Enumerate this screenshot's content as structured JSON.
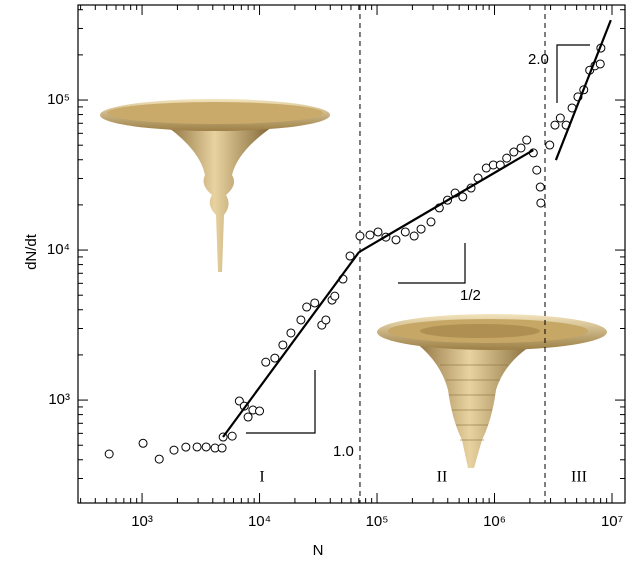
{
  "chart_data": {
    "type": "scatter",
    "x_label": "N",
    "y_label": "dN/dt",
    "log_x": true,
    "log_y": true,
    "xlim": [
      285,
      12900000
    ],
    "ylim": [
      206,
      430000
    ],
    "xticks": [
      {
        "value": 1000,
        "label": "10³"
      },
      {
        "value": 10000,
        "label": "10⁴"
      },
      {
        "value": 100000,
        "label": "10⁵"
      },
      {
        "value": 1000000,
        "label": "10⁶"
      },
      {
        "value": 10000000,
        "label": "10⁷"
      }
    ],
    "yticks": [
      {
        "value": 1000,
        "label": "10³"
      },
      {
        "value": 10000,
        "label": "10⁴"
      },
      {
        "value": 100000,
        "label": "10⁵"
      }
    ],
    "marker_color": "#000000",
    "line_color": "#000000",
    "x": [
      525,
      1020,
      1400,
      1870,
      2360,
      2940,
      3510,
      4180,
      4800,
      4900,
      5850,
      6730,
      7420,
      7990,
      8780,
      10000,
      11300,
      13500,
      15800,
      18500,
      22500,
      25200,
      29500,
      33900,
      36700,
      41400,
      43700,
      51300,
      58900,
      71600,
      87100,
      102000,
      119000,
      145000,
      174000,
      207000,
      237000,
      288000,
      339000,
      398000,
      462000,
      537000,
      631000,
      724000,
      851000,
      977000,
      1120000,
      1270000,
      1460000,
      1680000,
      1880000,
      2140000,
      2290000,
      2450000,
      2480000,
      2950000,
      3270000,
      3630000,
      4070000,
      4570000,
      5130000,
      5750000,
      6460000,
      7160000,
      7940000,
      8040000
    ],
    "values": [
      437,
      515,
      404,
      464,
      486,
      487,
      487,
      479,
      479,
      567,
      575,
      985,
      912,
      771,
      858,
      845,
      1790,
      1905,
      2330,
      2800,
      3420,
      4170,
      4440,
      3160,
      3420,
      4640,
      4930,
      6410,
      9120,
      12400,
      12600,
      13200,
      12200,
      11700,
      13200,
      12400,
      13800,
      15400,
      19100,
      21500,
      24000,
      22600,
      25900,
      30200,
      35200,
      36900,
      36900,
      41000,
      45000,
      47900,
      54100,
      44400,
      34100,
      26300,
      20600,
      50100,
      68100,
      75900,
      68100,
      88500,
      105000,
      117000,
      158000,
      169000,
      174000,
      222000
    ],
    "fits": [
      {
        "x": [
          4890,
          70300
        ],
        "values": [
          567,
          9700
        ]
      },
      {
        "x": [
          70300,
          2140000
        ],
        "values": [
          9700,
          46400
        ]
      },
      {
        "x": [
          3330000,
          9770000
        ],
        "values": [
          39800,
          341000
        ]
      }
    ],
    "region_boundaries": [
      71600,
      2690000
    ],
    "region_labels": [
      "I",
      "II",
      "III"
    ],
    "slope_labels": [
      "1.0",
      "1/2",
      "2.0"
    ]
  }
}
